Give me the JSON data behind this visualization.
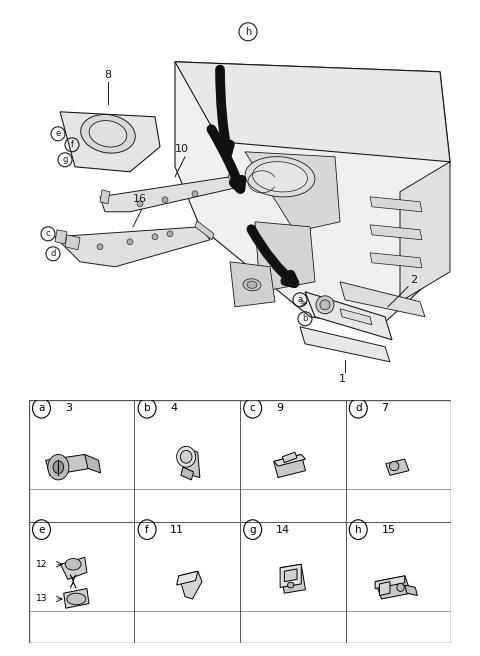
{
  "bg_color": "#ffffff",
  "lc": "#1a1a1a",
  "thick_arrow_color": "#111111",
  "label_fontsize": 8,
  "small_fontsize": 7,
  "table_border_color": "#444444",
  "cells": [
    {
      "letter": "a",
      "number": "3",
      "row": 0,
      "col": 0
    },
    {
      "letter": "b",
      "number": "4",
      "row": 0,
      "col": 1
    },
    {
      "letter": "c",
      "number": "9",
      "row": 0,
      "col": 2
    },
    {
      "letter": "d",
      "number": "7",
      "row": 0,
      "col": 3
    },
    {
      "letter": "e",
      "number": "",
      "row": 1,
      "col": 0
    },
    {
      "letter": "f",
      "number": "11",
      "row": 1,
      "col": 1
    },
    {
      "letter": "g",
      "number": "14",
      "row": 1,
      "col": 2
    },
    {
      "letter": "h",
      "number": "15",
      "row": 1,
      "col": 3
    }
  ]
}
